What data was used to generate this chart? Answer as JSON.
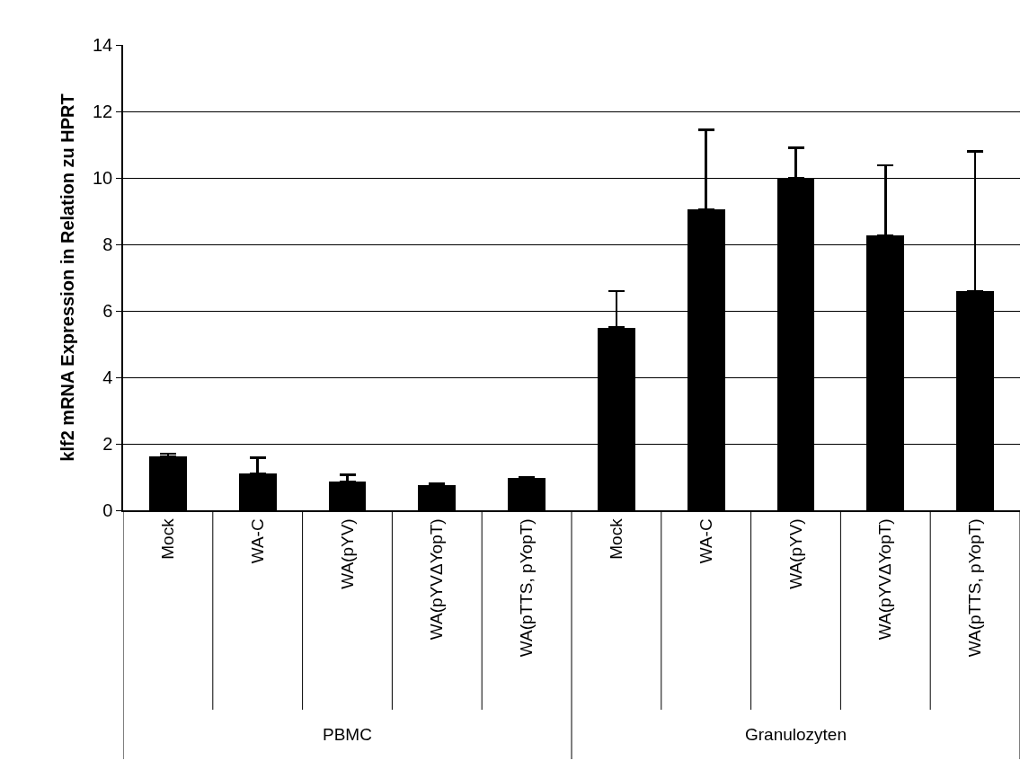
{
  "chart_data": {
    "type": "bar",
    "ylabel": "klf2 mRNA Expression in Relation zu HPRT",
    "categories": [
      "Mock",
      "WA-C",
      "WA(pYV)",
      "WA(pYVΔYopT)",
      "WA(pTTS, pYopT)",
      "Mock",
      "WA-C",
      "WA(pYV)",
      "WA(pYVΔYopT)",
      "WA(pTTS, pYopT)"
    ],
    "values": [
      1.62,
      1.1,
      0.87,
      0.75,
      0.98,
      5.5,
      9.05,
      10.0,
      8.27,
      6.6
    ],
    "errors": [
      [
        1.62,
        1.7
      ],
      [
        1.1,
        1.58
      ],
      [
        0.87,
        1.07
      ],
      [
        0.75,
        0.8
      ],
      [
        0.98,
        1.0
      ],
      [
        5.5,
        6.6
      ],
      [
        9.05,
        11.45
      ],
      [
        10.0,
        10.9
      ],
      [
        8.27,
        10.38
      ],
      [
        6.6,
        10.8
      ]
    ],
    "color": "#000000",
    "ylim": [
      0,
      14
    ],
    "yticks": [
      0,
      2,
      4,
      6,
      8,
      10,
      12,
      14
    ],
    "grid": "y",
    "legend": false,
    "annotations": [
      "PBMC",
      "Granulozyten"
    ]
  }
}
